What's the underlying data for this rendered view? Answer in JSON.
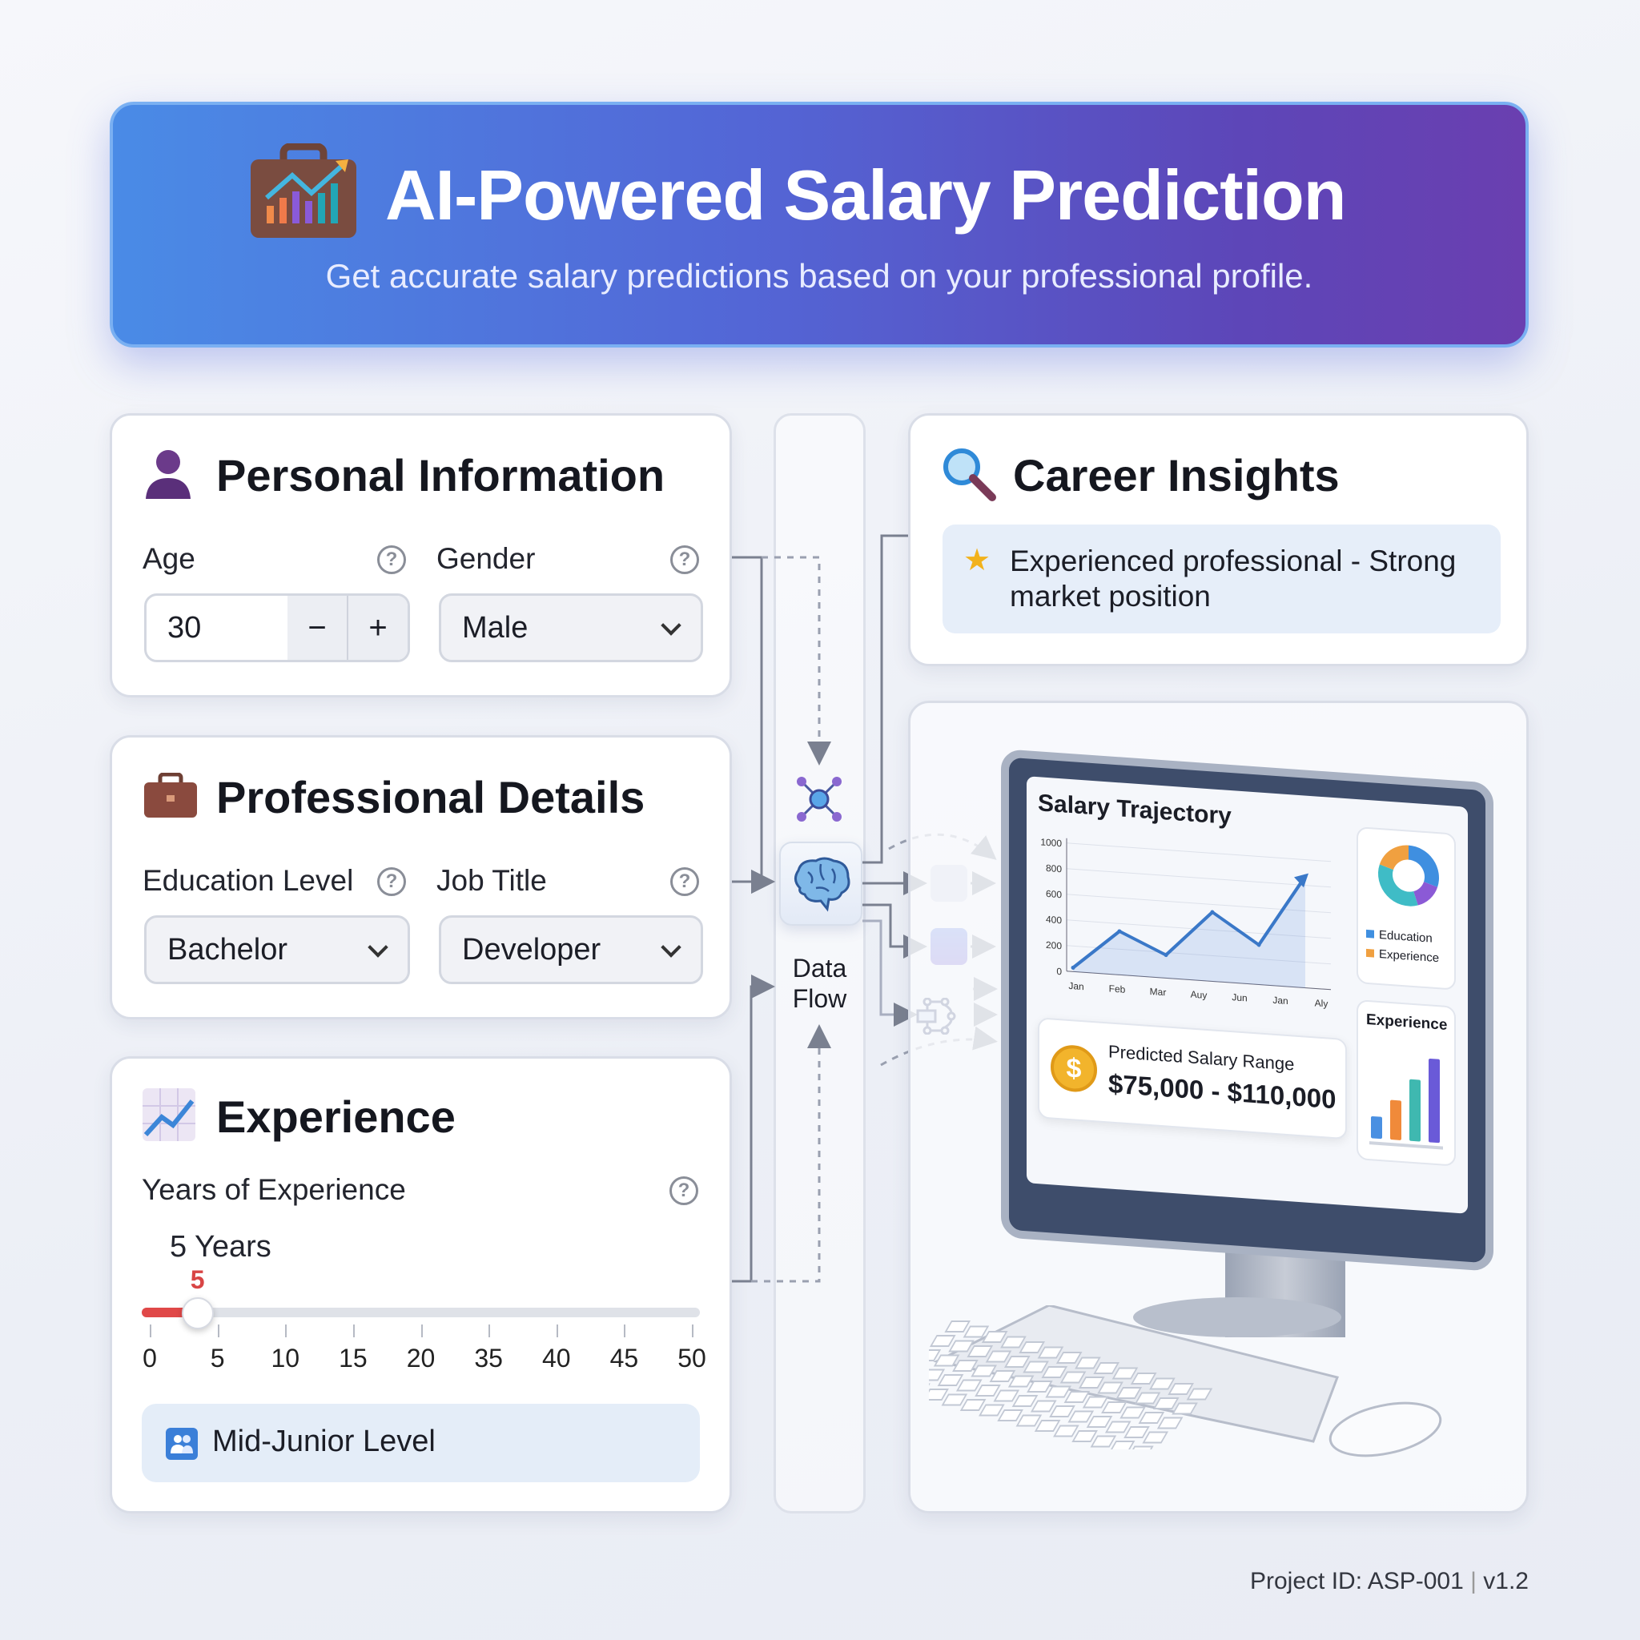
{
  "header": {
    "title": "AI-Powered Salary Prediction",
    "subtitle": "Get accurate salary predictions based on your professional profile.",
    "icon": "briefcase-chart-icon"
  },
  "personal": {
    "title": "Personal Information",
    "icon": "person-icon",
    "age_label": "Age",
    "age_value": "30",
    "decrement": "−",
    "increment": "+",
    "gender_label": "Gender",
    "gender_value": "Male"
  },
  "professional": {
    "title": "Professional Details",
    "icon": "briefcase-icon",
    "education_label": "Education Level",
    "education_value": "Bachelor",
    "job_label": "Job Title",
    "job_value": "Developer"
  },
  "experience": {
    "title": "Experience",
    "icon": "line-chart-icon",
    "years_label": "Years of Experience",
    "years_display": "5 Years",
    "slider_value_label": "5",
    "slider": {
      "value": 5,
      "min": 0,
      "max": 50
    },
    "ticks": [
      "0",
      "5",
      "10",
      "15",
      "20",
      "35",
      "40",
      "45",
      "50"
    ],
    "level": "Mid-Junior Level",
    "accent": "#e04848"
  },
  "flow": {
    "label_line1": "Data",
    "label_line2": "Flow",
    "icon": "brain-icon"
  },
  "insights": {
    "title": "Career Insights",
    "icon": "magnifier-icon",
    "message": "Experienced professional - Strong market position"
  },
  "monitor": {
    "chart_title": "Salary Trajectory",
    "y_ticks": [
      "1000",
      "800",
      "600",
      "400",
      "200",
      "0"
    ],
    "x_labels": [
      "Jan",
      "Feb",
      "Mar",
      "Auy",
      "Jun",
      "Jan",
      "Aly"
    ],
    "values": [
      30,
      340,
      180,
      540,
      310,
      870
    ],
    "ylim": [
      0,
      1000
    ],
    "legend": [
      "Education",
      "Experience"
    ],
    "donut": [
      {
        "label": "Education",
        "value": 30,
        "color": "#3f8fe0"
      },
      {
        "label": "",
        "value": 15,
        "color": "#8b5ad6"
      },
      {
        "label": "",
        "value": 35,
        "color": "#3fbcc6"
      },
      {
        "label": "Experience",
        "value": 20,
        "color": "#f0a040"
      }
    ],
    "bars_title": "Experience",
    "bars": [
      {
        "value": 25,
        "color": "#4a90e2"
      },
      {
        "value": 45,
        "color": "#f08a3a"
      },
      {
        "value": 70,
        "color": "#3fb8b0"
      },
      {
        "value": 95,
        "color": "#6a5ad8"
      }
    ],
    "range_label": "Predicted Salary Range",
    "range_value": "$75,000 - $110,000"
  },
  "footer": {
    "project": "Project ID: ASP-001",
    "version": "v1.2"
  }
}
